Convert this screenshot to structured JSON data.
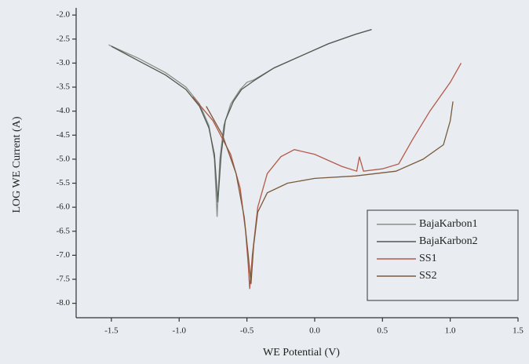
{
  "chart_data": {
    "type": "line",
    "x_label": "WE Potential (V)",
    "y_label": "LOG WE Current (A)",
    "xlim": [
      -1.76,
      1.5
    ],
    "ylim": [
      -8.3,
      -1.85
    ],
    "xticks": [
      -1.5,
      {
        "value": -1,
        "label": "-1.0"
      },
      -0.5,
      {
        "value": 0,
        "label": "0.0"
      },
      0.5,
      {
        "value": 1,
        "label": "1.0"
      },
      1.5
    ],
    "yticks": [
      {
        "value": -2,
        "label": "-2.0"
      },
      -2.5,
      {
        "value": -3,
        "label": "-3.0"
      },
      -3.5,
      {
        "value": -4,
        "label": "-4.0"
      },
      -4.5,
      {
        "value": -5,
        "label": "-5.0"
      },
      -5.5,
      {
        "value": -6,
        "label": "-6.0"
      },
      -6.5,
      {
        "value": -7,
        "label": "-7.0"
      },
      -7.5,
      {
        "value": -8,
        "label": "-8.0"
      }
    ],
    "series": [
      {
        "name": "BajaKarbon1",
        "color": "#8a8f8a",
        "x": [
          -1.52,
          -1.3,
          -1.1,
          -0.95,
          -0.85,
          -0.78,
          -0.74,
          -0.72,
          -0.7,
          -0.67,
          -0.62,
          -0.55,
          -0.5,
          -0.45,
          -0.3,
          -0.1,
          0.1,
          0.3,
          0.42
        ],
        "values": [
          -2.62,
          -2.9,
          -3.2,
          -3.5,
          -3.85,
          -4.3,
          -5.0,
          -6.2,
          -5.0,
          -4.3,
          -3.85,
          -3.55,
          -3.4,
          -3.35,
          -3.1,
          -2.85,
          -2.6,
          -2.4,
          -2.3
        ]
      },
      {
        "name": "BajaKarbon2",
        "color": "#4f5a52",
        "x": [
          -1.5,
          -1.3,
          -1.1,
          -0.95,
          -0.85,
          -0.78,
          -0.74,
          -0.715,
          -0.69,
          -0.66,
          -0.6,
          -0.54,
          -0.49,
          -0.44,
          -0.3,
          -0.1,
          0.1,
          0.3,
          0.42
        ],
        "values": [
          -2.65,
          -2.95,
          -3.25,
          -3.55,
          -3.9,
          -4.35,
          -4.9,
          -5.9,
          -4.9,
          -4.2,
          -3.8,
          -3.55,
          -3.45,
          -3.35,
          -3.1,
          -2.85,
          -2.6,
          -2.4,
          -2.3
        ]
      },
      {
        "name": "SS1",
        "color": "#b55a4a",
        "x": [
          -0.9,
          -0.75,
          -0.62,
          -0.55,
          -0.51,
          -0.49,
          -0.48,
          -0.46,
          -0.42,
          -0.35,
          -0.25,
          -0.15,
          0.0,
          0.2,
          0.31,
          0.33,
          0.36,
          0.5,
          0.62,
          0.72,
          0.85,
          1.0,
          1.08
        ],
        "values": [
          -3.7,
          -4.2,
          -4.9,
          -5.6,
          -6.5,
          -7.2,
          -7.7,
          -7.0,
          -6.0,
          -5.3,
          -4.95,
          -4.8,
          -4.9,
          -5.15,
          -5.25,
          -4.95,
          -5.25,
          -5.2,
          -5.1,
          -4.6,
          -4.0,
          -3.4,
          -3.0
        ]
      },
      {
        "name": "SS2",
        "color": "#7a5a3c",
        "x": [
          -0.8,
          -0.68,
          -0.58,
          -0.52,
          -0.49,
          -0.47,
          -0.45,
          -0.42,
          -0.35,
          -0.2,
          0.0,
          0.3,
          0.6,
          0.8,
          0.95,
          1.0,
          1.02
        ],
        "values": [
          -3.9,
          -4.5,
          -5.3,
          -6.2,
          -7.0,
          -7.6,
          -6.8,
          -6.1,
          -5.7,
          -5.5,
          -5.4,
          -5.35,
          -5.25,
          -5.0,
          -4.7,
          -4.2,
          -3.8
        ]
      }
    ]
  }
}
